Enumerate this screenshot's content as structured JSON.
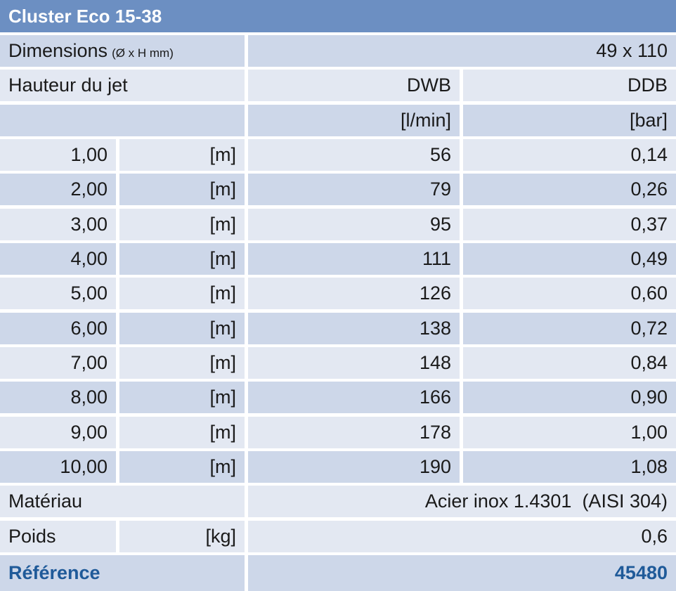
{
  "title": "Cluster Eco 15-38",
  "dimensions": {
    "label": "Dimensions",
    "unit": "(Ø x H mm)",
    "value": "49 x 110"
  },
  "jet": {
    "label": "Hauteur du jet",
    "columns": [
      "DWB",
      "DDB"
    ],
    "units": [
      "[l/min]",
      "[bar]"
    ],
    "rows": [
      [
        "1,00",
        "[m]",
        "56",
        "0,14"
      ],
      [
        "2,00",
        "[m]",
        "79",
        "0,26"
      ],
      [
        "3,00",
        "[m]",
        "95",
        "0,37"
      ],
      [
        "4,00",
        "[m]",
        "111",
        "0,49"
      ],
      [
        "5,00",
        "[m]",
        "126",
        "0,60"
      ],
      [
        "6,00",
        "[m]",
        "138",
        "0,72"
      ],
      [
        "7,00",
        "[m]",
        "148",
        "0,84"
      ],
      [
        "8,00",
        "[m]",
        "166",
        "0,90"
      ],
      [
        "9,00",
        "[m]",
        "178",
        "1,00"
      ],
      [
        "10,00",
        "[m]",
        "190",
        "1,08"
      ]
    ]
  },
  "material": {
    "label": "Matériau",
    "value": "Acier inox 1.4301  (AISI 304)"
  },
  "weight": {
    "label": "Poids",
    "unit": "[kg]",
    "value": "0,6"
  },
  "reference": {
    "label": "Référence",
    "value": "45480"
  }
}
